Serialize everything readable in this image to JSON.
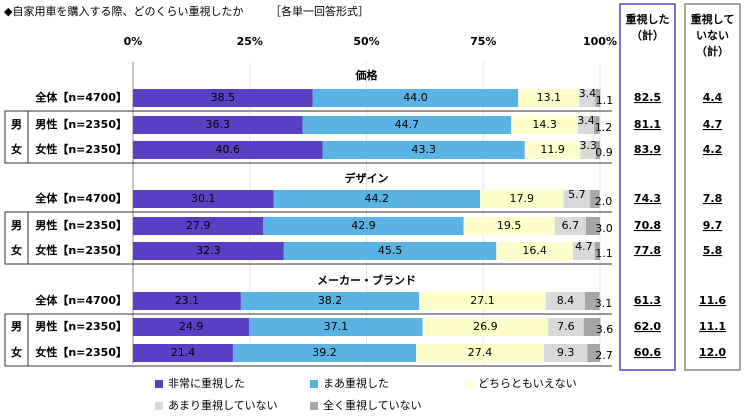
{
  "chart_data": {
    "type": "bar",
    "orientation": "horizontal",
    "stacked": true,
    "title": "◆自家用車を購入する際、どのくらい重視したか",
    "subtitle": "［各単一回答形式］",
    "xlim": [
      0,
      100
    ],
    "xticks": [
      {
        "value": 0,
        "label": "0%"
      },
      {
        "value": 25,
        "label": "25%"
      },
      {
        "value": 50,
        "label": "50%"
      },
      {
        "value": 75,
        "label": "75%"
      },
      {
        "value": 100,
        "label": "100%"
      }
    ],
    "group_names": [
      "価格",
      "デザイン",
      "メーカー・ブランド"
    ],
    "sex_labels": [
      "男",
      "女"
    ],
    "categories": [
      "全体【n=4700】",
      "男性【n=2350】",
      "女性【n=2350】",
      "全体【n=4700】",
      "男性【n=2350】",
      "女性【n=2350】",
      "全体【n=4700】",
      "男性【n=2350】",
      "女性【n=2350】"
    ],
    "series": [
      {
        "name": "非常に重視した",
        "color": "#5a3fc4",
        "values": [
          38.5,
          36.3,
          40.6,
          30.1,
          27.9,
          32.3,
          23.1,
          24.9,
          21.4
        ],
        "value_labels": [
          "38.5",
          "36.3",
          "40.6",
          "30.1",
          "27.9",
          "32.3",
          "23.1",
          "24.9",
          "21.4"
        ]
      },
      {
        "name": "まあ重視した",
        "color": "#5bb3e4",
        "values": [
          44.0,
          44.7,
          43.3,
          44.2,
          42.9,
          45.5,
          38.2,
          37.1,
          39.2
        ],
        "value_labels": [
          "44.0",
          "44.7",
          "43.3",
          "44.2",
          "42.9",
          "45.5",
          "38.2",
          "37.1",
          "39.2"
        ]
      },
      {
        "name": "どちらともいえない",
        "color": "#ffffcc",
        "values": [
          13.1,
          14.3,
          11.9,
          17.9,
          19.5,
          16.4,
          27.1,
          26.9,
          27.4
        ],
        "value_labels": [
          "13.1",
          "14.3",
          "11.9",
          "17.9",
          "19.5",
          "16.4",
          "27.1",
          "26.9",
          "27.4"
        ]
      },
      {
        "name": "あまり重視していない",
        "color": "#d9d9d9",
        "values": [
          3.4,
          3.4,
          3.3,
          5.7,
          6.7,
          4.7,
          8.4,
          7.6,
          9.3
        ],
        "value_labels": [
          "3.4",
          "3.4",
          "3.3",
          "5.7",
          "6.7",
          "4.7",
          "8.4",
          "7.6",
          "9.3"
        ]
      },
      {
        "name": "全く重視していない",
        "color": "#a6a6a6",
        "values": [
          1.1,
          1.2,
          0.9,
          2.0,
          3.0,
          1.1,
          3.1,
          3.6,
          2.7
        ],
        "value_labels": [
          "1.1",
          "1.2",
          "0.9",
          "2.0",
          "3.0",
          "1.1",
          "3.1",
          "3.6",
          "2.7"
        ]
      }
    ],
    "totals": [
      {
        "header": [
          "重視した",
          "（計）"
        ],
        "values": [
          82.5,
          81.1,
          83.9,
          74.3,
          70.8,
          77.8,
          61.3,
          62.0,
          60.6
        ],
        "value_labels": [
          "82.5",
          "81.1",
          "83.9",
          "74.3",
          "70.8",
          "77.8",
          "61.3",
          "62.0",
          "60.6"
        ]
      },
      {
        "header": [
          "重視して",
          "いない",
          "（計）"
        ],
        "values": [
          4.4,
          4.7,
          4.2,
          7.8,
          9.7,
          5.8,
          11.6,
          11.1,
          12.0
        ],
        "value_labels": [
          "4.4",
          "4.7",
          "4.2",
          "7.8",
          "9.7",
          "5.8",
          "11.6",
          "11.1",
          "12.0"
        ]
      }
    ]
  }
}
